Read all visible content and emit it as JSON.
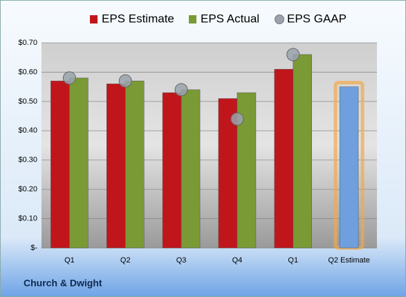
{
  "chart_data": {
    "type": "bar",
    "categories": [
      "Q1",
      "Q2",
      "Q3",
      "Q4",
      "Q1",
      "Q2 Estimate"
    ],
    "series": [
      {
        "name": "EPS Estimate",
        "color": "#c0161b",
        "point_colors": [
          "#c0161b",
          "#c0161b",
          "#c0161b",
          "#c0161b",
          "#c0161b",
          "#6f9fdc"
        ],
        "values": [
          0.57,
          0.56,
          0.53,
          0.51,
          0.61,
          0.55
        ]
      },
      {
        "name": "EPS Actual",
        "color": "#7a9a35",
        "values": [
          0.58,
          0.57,
          0.54,
          0.53,
          0.66,
          null
        ]
      },
      {
        "name": "EPS GAAP",
        "color": "#9aa3ad",
        "marker": "circle",
        "values": [
          0.58,
          0.57,
          0.54,
          0.44,
          0.66,
          null
        ]
      }
    ],
    "ylim": [
      0,
      0.7
    ],
    "yticks": [
      {
        "value": 0,
        "label": "$-"
      },
      {
        "value": 0.1,
        "label": "$0.10"
      },
      {
        "value": 0.2,
        "label": "$0.20"
      },
      {
        "value": 0.3,
        "label": "$0.30"
      },
      {
        "value": 0.4,
        "label": "$0.40"
      },
      {
        "value": 0.5,
        "label": "$0.50"
      },
      {
        "value": 0.6,
        "label": "$0.60"
      },
      {
        "value": 0.7,
        "label": "$0.70"
      }
    ],
    "grid": true,
    "footer": "Church & Dwight"
  }
}
